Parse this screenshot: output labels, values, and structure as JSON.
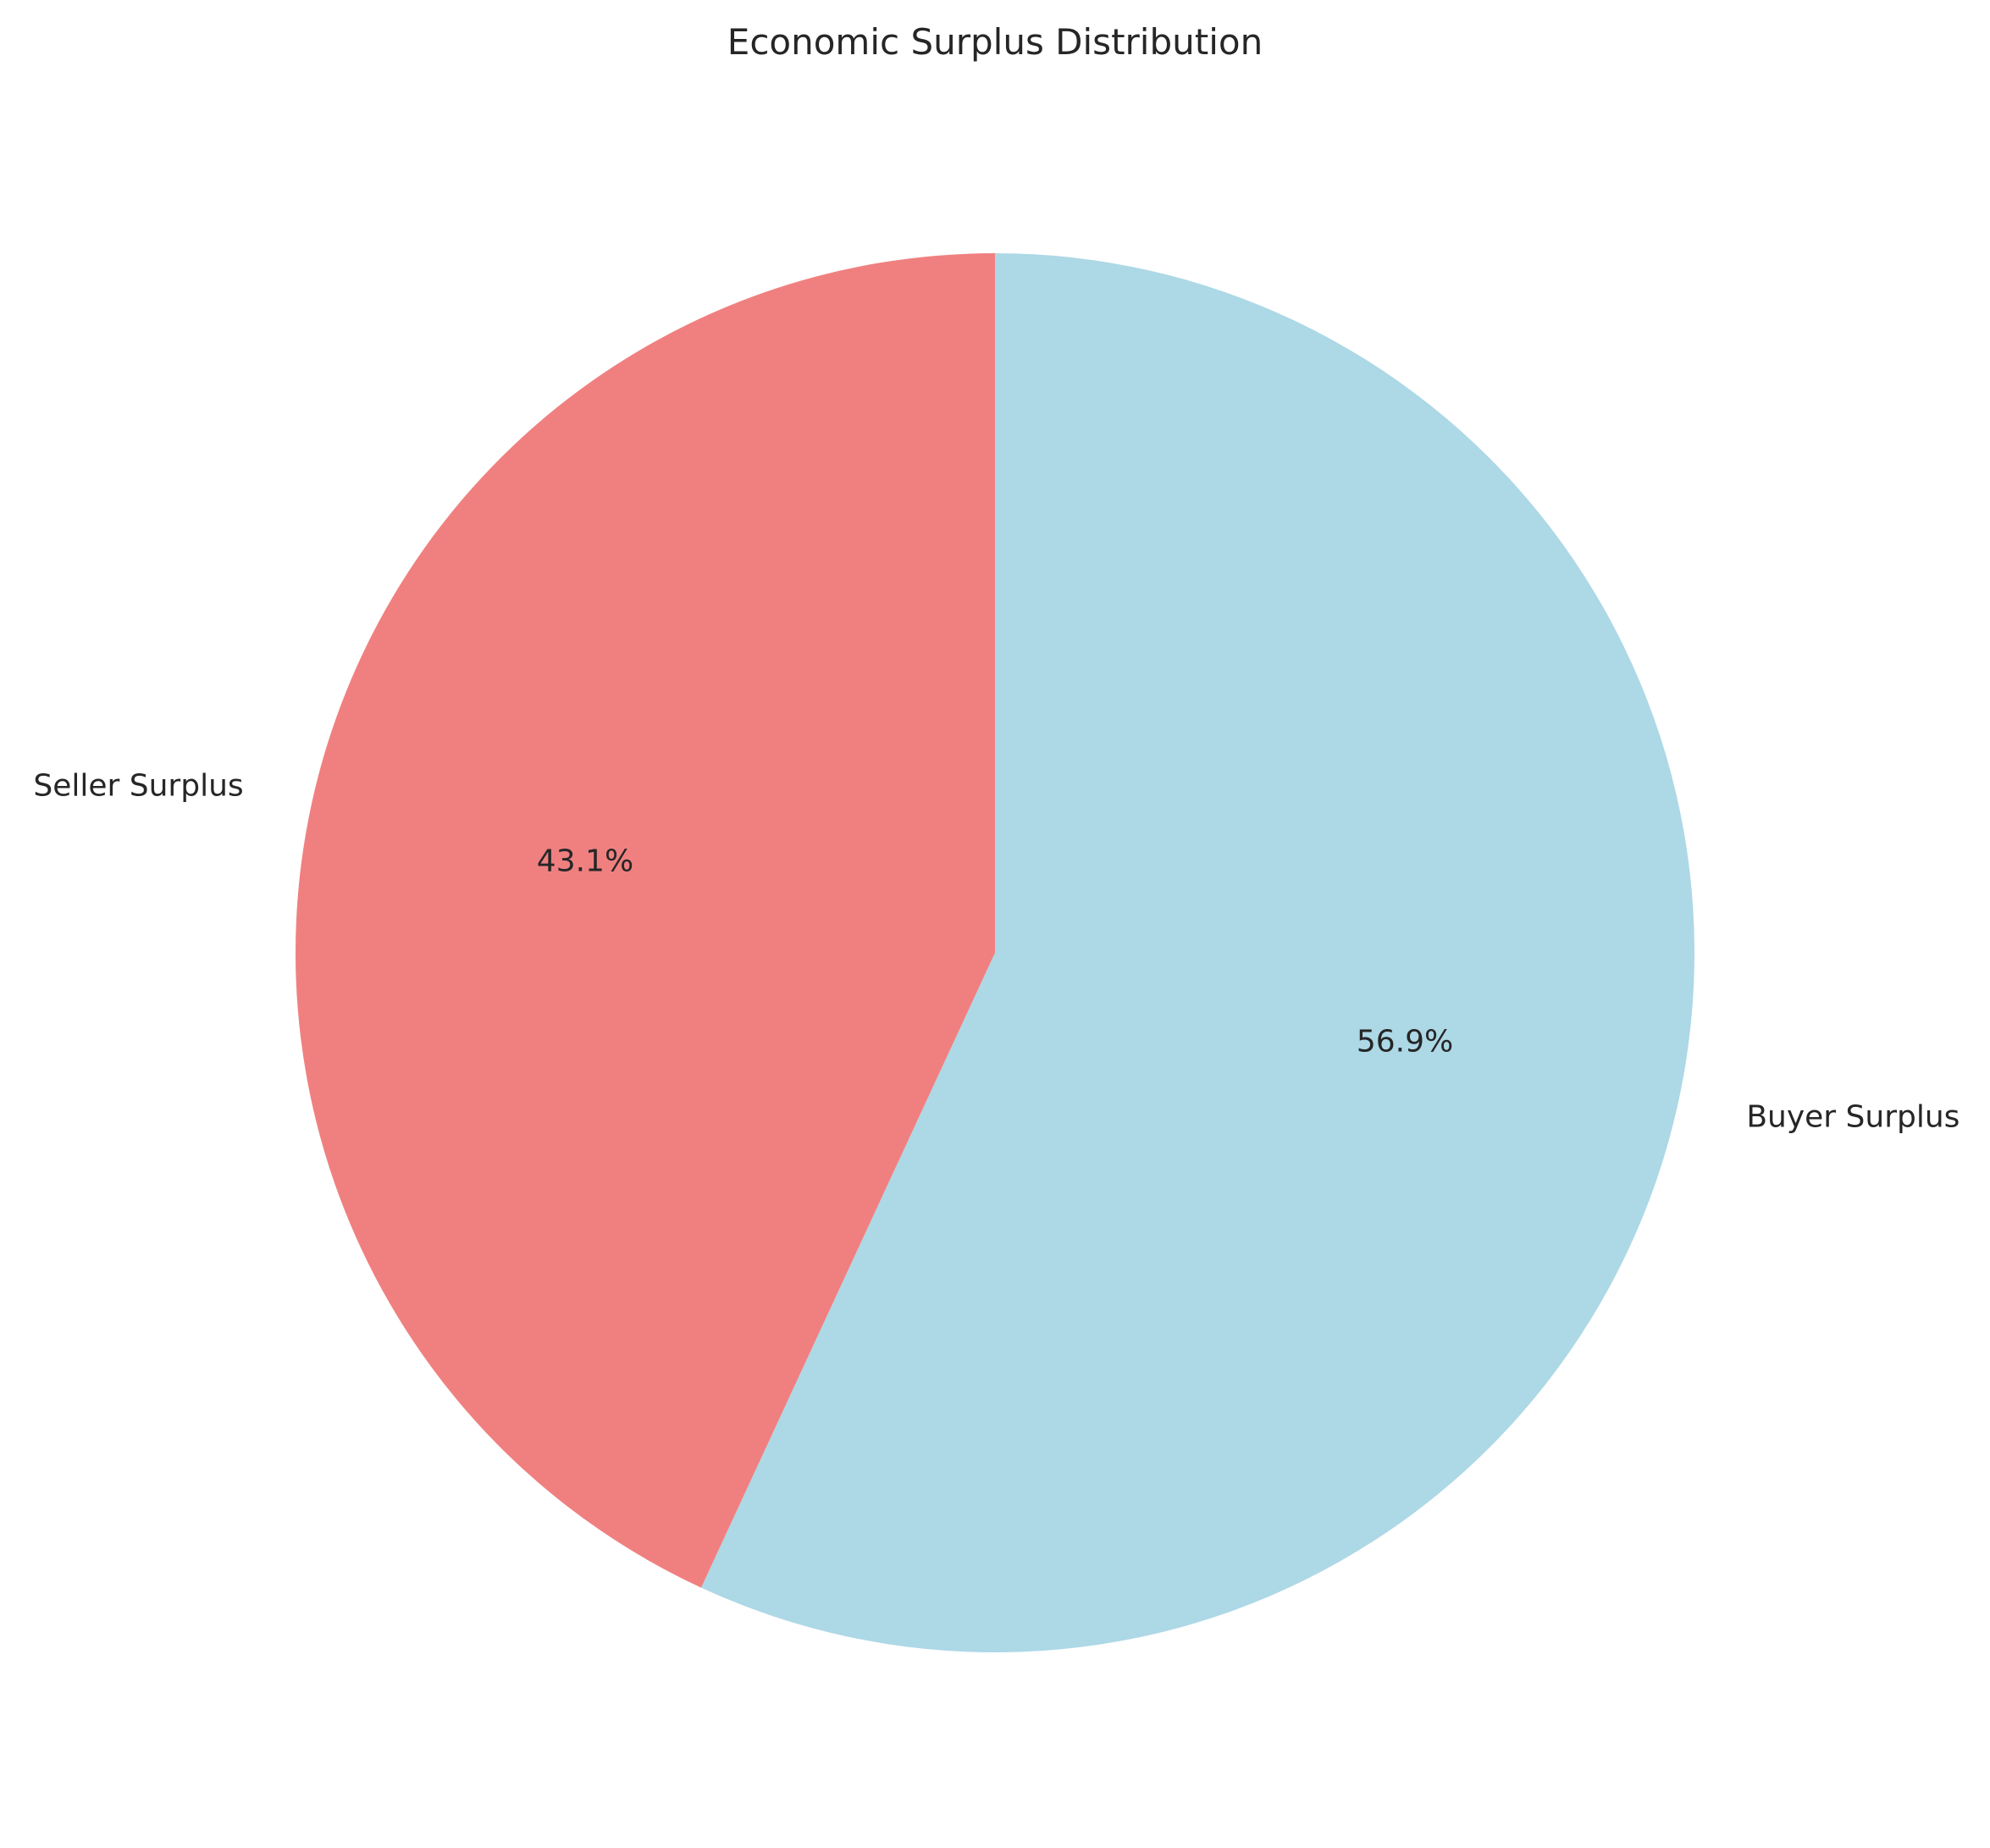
{
  "chart_data": {
    "type": "pie",
    "title": "Economic Surplus Distribution",
    "labels": [
      "Buyer Surplus",
      "Seller Surplus"
    ],
    "values": [
      56.9,
      43.1
    ],
    "percent_labels": [
      "56.9%",
      "43.1%"
    ],
    "colors": [
      "#add8e6",
      "#f08080"
    ],
    "start": "top",
    "direction": "clockwise",
    "legend": "none"
  }
}
